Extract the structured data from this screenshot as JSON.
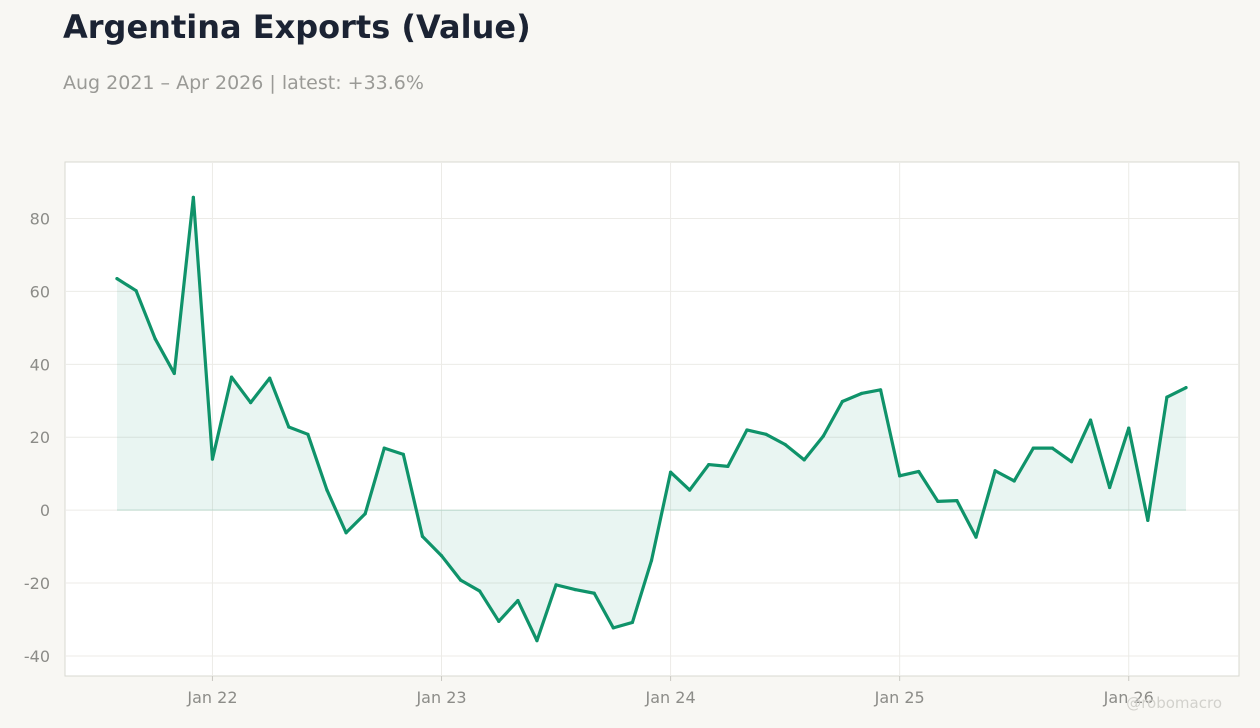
{
  "header": {
    "title": "Argentina Exports (Value)",
    "subtitle": "Aug 2021 – Apr 2026 | latest: +33.6%"
  },
  "watermark": "@robomacro",
  "colors": {
    "line": "#0f936a",
    "fill": "#0f936a",
    "grid": "#ecebe7",
    "plot_background": "#ffffff",
    "plot_border": "#d9d8d2",
    "tick_text": "#8c8c88"
  },
  "chart_data": {
    "type": "area",
    "x_start": "2021-08",
    "x_end": "2026-04",
    "frequency": "monthly",
    "x": [
      "2021-08",
      "2021-09",
      "2021-10",
      "2021-11",
      "2021-12",
      "2022-01",
      "2022-02",
      "2022-03",
      "2022-04",
      "2022-05",
      "2022-06",
      "2022-07",
      "2022-08",
      "2022-09",
      "2022-10",
      "2022-11",
      "2022-12",
      "2023-01",
      "2023-02",
      "2023-03",
      "2023-04",
      "2023-05",
      "2023-06",
      "2023-07",
      "2023-08",
      "2023-09",
      "2023-10",
      "2023-11",
      "2023-12",
      "2024-01",
      "2024-02",
      "2024-03",
      "2024-04",
      "2024-05",
      "2024-06",
      "2024-07",
      "2024-08",
      "2024-09",
      "2024-10",
      "2024-11",
      "2024-12",
      "2025-01",
      "2025-02",
      "2025-03",
      "2025-04",
      "2025-05",
      "2025-06",
      "2025-07",
      "2025-08",
      "2025-09",
      "2025-10",
      "2025-11",
      "2025-12",
      "2026-01",
      "2026-02",
      "2026-03",
      "2026-04"
    ],
    "series": [
      {
        "values": [
          63.5,
          60.2,
          47.0,
          37.5,
          85.8,
          14.0,
          36.5,
          29.5,
          36.2,
          22.8,
          20.8,
          5.5,
          -6.2,
          -1.0,
          17.0,
          15.3,
          -7.2,
          -12.5,
          -19.2,
          -22.2,
          -30.5,
          -24.8,
          -35.8,
          -20.5,
          -21.8,
          -22.8,
          -32.3,
          -30.8,
          -13.8,
          10.4,
          5.5,
          12.5,
          12.0,
          22.0,
          20.8,
          18.0,
          13.8,
          20.3,
          29.8,
          32.0,
          33.0,
          9.4,
          10.6,
          2.4,
          2.6,
          -7.4,
          10.8,
          8.0,
          17.0,
          17.0,
          13.3,
          24.7,
          6.2,
          22.5,
          -2.8,
          31.0,
          33.6
        ]
      }
    ],
    "ylim": [
      -45.5,
      95.5
    ],
    "y_ticks": [
      -40,
      -20,
      0,
      20,
      40,
      60,
      80
    ],
    "y_tick_labels": [
      "-40",
      "-20",
      "0",
      "20",
      "40",
      "60",
      "80"
    ],
    "x_ticks": [
      "2022-01",
      "2023-01",
      "2024-01",
      "2025-01",
      "2026-01"
    ],
    "x_tick_labels": [
      "Jan 22",
      "Jan 23",
      "Jan 24",
      "Jan 25",
      "Jan 26"
    ],
    "grid": true,
    "legend": "none",
    "xlabel": "",
    "ylabel": ""
  }
}
